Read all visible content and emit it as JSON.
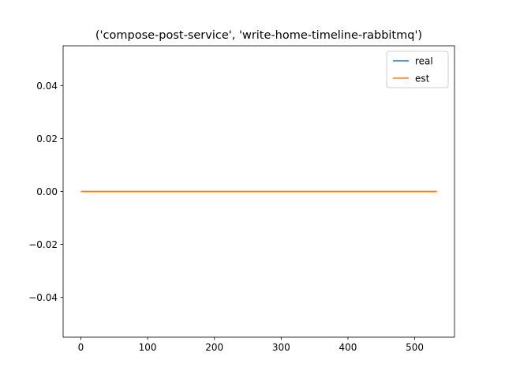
{
  "chart_data": {
    "type": "line",
    "title": "('compose-post-service', 'write-home-timeline-rabbitmq')",
    "xlabel": "",
    "ylabel": "",
    "xlim": [
      -26.6,
      559.6
    ],
    "ylim": [
      -0.055,
      0.055
    ],
    "x_ticks": [
      0,
      100,
      200,
      300,
      400,
      500
    ],
    "y_ticks": [
      -0.04,
      -0.02,
      0.0,
      0.02,
      0.04
    ],
    "x_tick_labels": [
      "0",
      "100",
      "200",
      "300",
      "400",
      "500"
    ],
    "y_tick_labels": [
      "−0.04",
      "−0.02",
      "0.00",
      "0.02",
      "0.04"
    ],
    "grid": false,
    "legend_position": "top-right",
    "series": [
      {
        "name": "real",
        "color": "#1f77b4",
        "x": [
          0,
          533
        ],
        "y": [
          0,
          0
        ]
      },
      {
        "name": "est",
        "color": "#ff7f0e",
        "x": [
          0,
          533
        ],
        "y": [
          0,
          0
        ]
      }
    ]
  }
}
